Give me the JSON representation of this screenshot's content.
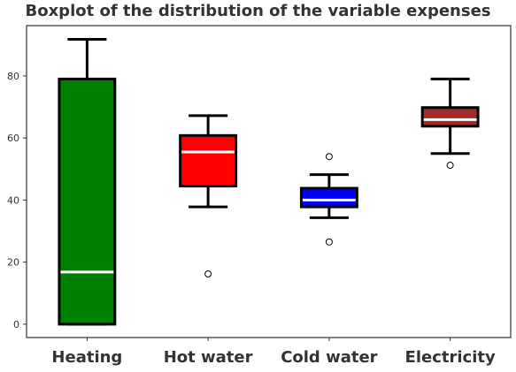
{
  "chart_data": {
    "type": "boxplot",
    "title": "Boxplot of the distribution of the variable expenses",
    "xlabel": "",
    "ylabel": "",
    "categories": [
      "Heating",
      "Hot water",
      "Cold water",
      "Electricity"
    ],
    "ylim": [
      -4.3,
      96.2
    ],
    "yticks": [
      0,
      20,
      40,
      60,
      80
    ],
    "grid": false,
    "boxes": [
      {
        "name": "Heating",
        "color": "#008000",
        "whisker_low": 0,
        "q1": 0,
        "median": 16.8,
        "q3": 79,
        "whisker_high": 91.8,
        "fliers": []
      },
      {
        "name": "Hot water",
        "color": "#ff0000",
        "whisker_low": 37.8,
        "q1": 44.5,
        "median": 55.5,
        "q3": 60.8,
        "whisker_high": 67.2,
        "fliers": [
          16.2
        ]
      },
      {
        "name": "Cold water",
        "color": "#0000ff",
        "whisker_low": 34.3,
        "q1": 37.8,
        "median": 40,
        "q3": 43.8,
        "whisker_high": 48.2,
        "fliers": [
          54,
          26.5
        ]
      },
      {
        "name": "Electricity",
        "color": "#a52a2a",
        "whisker_low": 55,
        "q1": 63.8,
        "median": 65.9,
        "q3": 69.8,
        "whisker_high": 79,
        "fliers": [
          51.2
        ]
      }
    ]
  }
}
